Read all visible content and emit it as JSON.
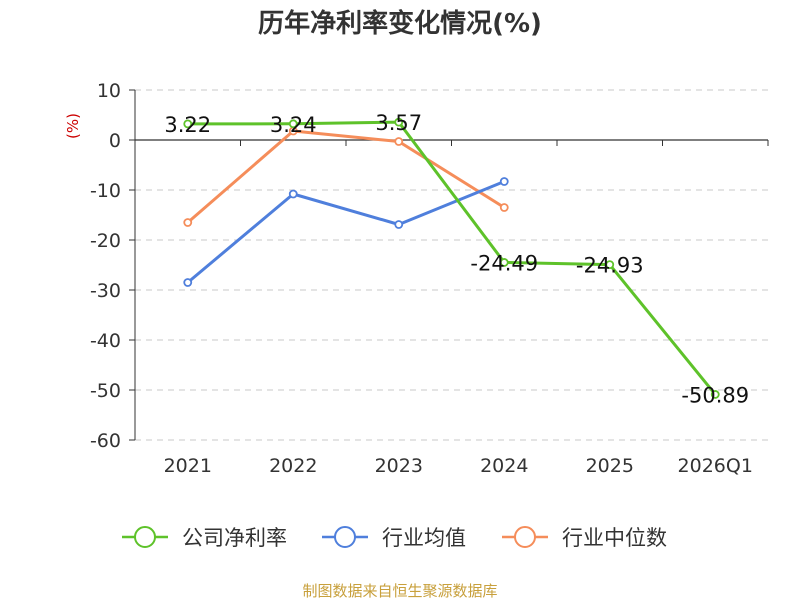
{
  "chart_data": {
    "type": "line",
    "title": "历年净利率变化情况(%)",
    "ylabel": "(%)",
    "categories": [
      "2021",
      "2022",
      "2023",
      "2024",
      "2025",
      "2026Q1"
    ],
    "ylim": [
      -60,
      10
    ],
    "yticks": [
      "10",
      "0",
      "-10",
      "-20",
      "-30",
      "-40",
      "-50",
      "-60"
    ],
    "grid": true,
    "legend_position": "bottom",
    "series": [
      {
        "name": "公司净利率",
        "color": "#5ec22a",
        "values": [
          3.22,
          3.24,
          3.57,
          -24.49,
          -24.93,
          -50.89
        ],
        "labels": [
          "3.22",
          "3.24",
          "3.57",
          "-24.49",
          "-24.93",
          "-50.89"
        ]
      },
      {
        "name": "行业均值",
        "color": "#4f7fdc",
        "values": [
          -28.5,
          -10.8,
          -16.9,
          -8.3,
          null,
          null
        ]
      },
      {
        "name": "行业中位数",
        "color": "#f58d5a",
        "values": [
          -16.5,
          1.8,
          -0.3,
          -13.5,
          null,
          null
        ]
      }
    ]
  },
  "footer": {
    "source": "制图数据来自恒生聚源数据库"
  }
}
